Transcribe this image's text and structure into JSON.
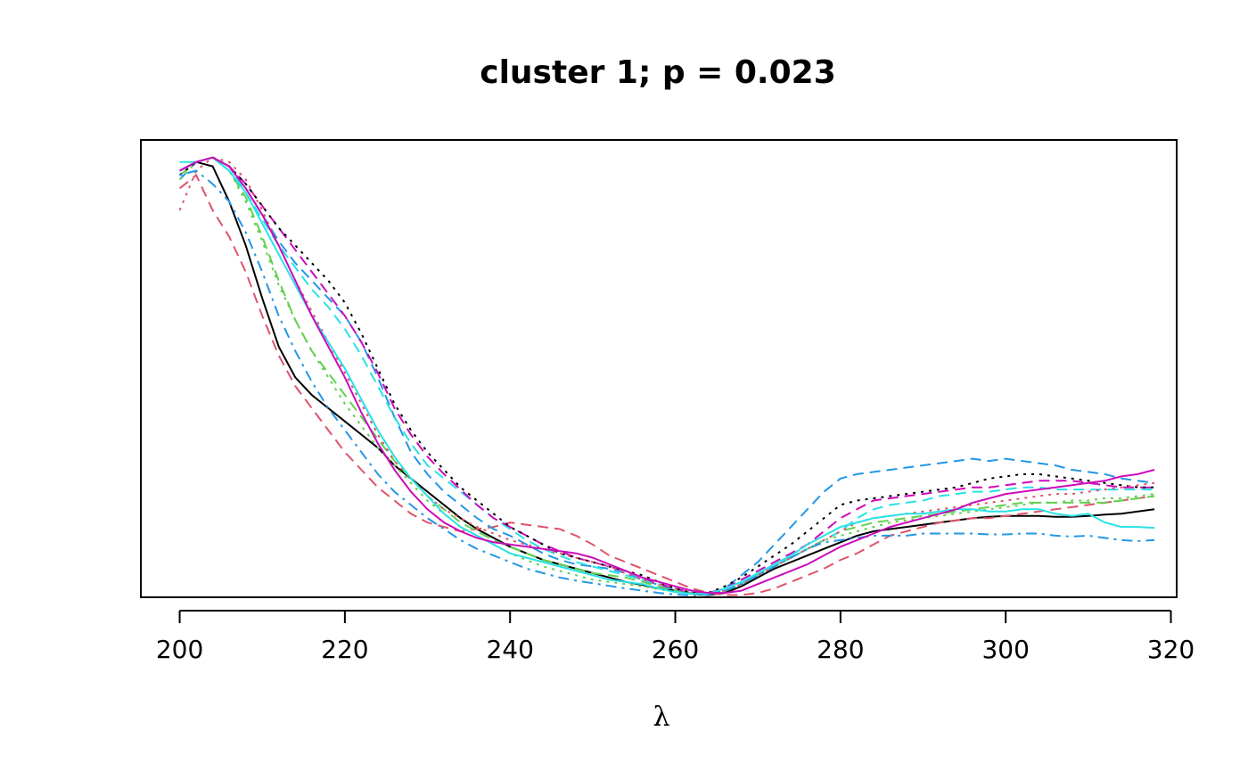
{
  "chart_data": {
    "type": "line",
    "title": "cluster 1; p = 0.023",
    "xlabel": "λ",
    "ylabel": "",
    "xlim": [
      195.3,
      320.7
    ],
    "ylim": [
      0,
      1.04
    ],
    "x_ticks": [
      200,
      220,
      240,
      260,
      280,
      300,
      320
    ],
    "y_axis_shown": false,
    "grid": false,
    "legend": "none",
    "x": [
      200,
      202,
      204,
      206,
      208,
      210,
      212,
      214,
      216,
      218,
      220,
      222,
      224,
      226,
      228,
      230,
      232,
      234,
      236,
      238,
      240,
      242,
      244,
      246,
      248,
      250,
      252,
      254,
      256,
      258,
      260,
      262,
      264,
      266,
      268,
      270,
      272,
      274,
      276,
      278,
      280,
      282,
      284,
      286,
      288,
      290,
      292,
      294,
      296,
      298,
      300,
      302,
      304,
      306,
      308,
      310,
      312,
      314,
      316,
      318
    ],
    "series": [
      {
        "color": "#000000",
        "dash": "solid",
        "values": [
          0.97,
          0.99,
          0.98,
          0.9,
          0.8,
          0.68,
          0.57,
          0.5,
          0.46,
          0.43,
          0.4,
          0.37,
          0.34,
          0.3,
          0.27,
          0.24,
          0.21,
          0.18,
          0.155,
          0.135,
          0.115,
          0.1,
          0.085,
          0.075,
          0.065,
          0.055,
          0.045,
          0.035,
          0.028,
          0.02,
          0.015,
          0.008,
          0.005,
          0.01,
          0.025,
          0.045,
          0.065,
          0.08,
          0.095,
          0.11,
          0.125,
          0.14,
          0.15,
          0.155,
          0.16,
          0.165,
          0.17,
          0.175,
          0.18,
          0.183,
          0.185,
          0.185,
          0.185,
          0.183,
          0.183,
          0.185,
          0.188,
          0.19,
          0.195,
          0.2
        ]
      },
      {
        "color": "#DF536B",
        "dash": "dashed",
        "values": [
          0.93,
          0.96,
          0.88,
          0.82,
          0.74,
          0.64,
          0.55,
          0.48,
          0.43,
          0.38,
          0.33,
          0.29,
          0.25,
          0.22,
          0.19,
          0.17,
          0.16,
          0.15,
          0.155,
          0.16,
          0.17,
          0.165,
          0.16,
          0.155,
          0.14,
          0.12,
          0.095,
          0.08,
          0.065,
          0.05,
          0.035,
          0.02,
          0.01,
          0.005,
          0.005,
          0.01,
          0.02,
          0.035,
          0.05,
          0.065,
          0.085,
          0.1,
          0.12,
          0.14,
          0.15,
          0.16,
          0.17,
          0.175,
          0.18,
          0.18,
          0.185,
          0.19,
          0.195,
          0.2,
          0.205,
          0.21,
          0.215,
          0.22,
          0.225,
          0.23
        ]
      },
      {
        "color": "#61D04F",
        "dash": "dashed",
        "values": [
          0.96,
          0.99,
          1.0,
          0.97,
          0.91,
          0.82,
          0.72,
          0.63,
          0.56,
          0.51,
          0.46,
          0.41,
          0.36,
          0.31,
          0.27,
          0.23,
          0.2,
          0.17,
          0.15,
          0.13,
          0.115,
          0.1,
          0.085,
          0.075,
          0.065,
          0.055,
          0.05,
          0.045,
          0.035,
          0.025,
          0.015,
          0.01,
          0.008,
          0.015,
          0.03,
          0.05,
          0.07,
          0.09,
          0.11,
          0.13,
          0.15,
          0.16,
          0.17,
          0.175,
          0.18,
          0.185,
          0.19,
          0.195,
          0.2,
          0.205,
          0.21,
          0.215,
          0.215,
          0.215,
          0.215,
          0.215,
          0.215,
          0.22,
          0.225,
          0.23
        ]
      },
      {
        "color": "#2297E6",
        "dash": "dashed",
        "values": [
          0.95,
          0.99,
          1.0,
          0.98,
          0.93,
          0.87,
          0.81,
          0.76,
          0.72,
          0.68,
          0.64,
          0.58,
          0.5,
          0.41,
          0.33,
          0.28,
          0.24,
          0.21,
          0.18,
          0.155,
          0.14,
          0.12,
          0.1,
          0.085,
          0.075,
          0.07,
          0.065,
          0.055,
          0.04,
          0.028,
          0.018,
          0.01,
          0.008,
          0.02,
          0.05,
          0.08,
          0.12,
          0.16,
          0.2,
          0.24,
          0.27,
          0.28,
          0.285,
          0.29,
          0.295,
          0.3,
          0.305,
          0.31,
          0.315,
          0.31,
          0.315,
          0.31,
          0.305,
          0.3,
          0.29,
          0.285,
          0.28,
          0.27,
          0.265,
          0.26
        ]
      },
      {
        "color": "#28E2E5",
        "dash": "dashed",
        "values": [
          0.97,
          0.99,
          1.0,
          0.98,
          0.92,
          0.86,
          0.8,
          0.75,
          0.7,
          0.66,
          0.61,
          0.55,
          0.48,
          0.41,
          0.35,
          0.3,
          0.27,
          0.24,
          0.21,
          0.18,
          0.155,
          0.13,
          0.11,
          0.095,
          0.08,
          0.07,
          0.06,
          0.05,
          0.04,
          0.03,
          0.02,
          0.01,
          0.008,
          0.015,
          0.03,
          0.05,
          0.07,
          0.09,
          0.11,
          0.13,
          0.15,
          0.18,
          0.2,
          0.21,
          0.215,
          0.22,
          0.23,
          0.235,
          0.24,
          0.24,
          0.245,
          0.25,
          0.25,
          0.245,
          0.245,
          0.245,
          0.245,
          0.245,
          0.245,
          0.245
        ]
      },
      {
        "color": "#CD0BBC",
        "dash": "dashed",
        "values": [
          0.97,
          0.99,
          1.0,
          0.98,
          0.94,
          0.89,
          0.84,
          0.79,
          0.74,
          0.69,
          0.64,
          0.58,
          0.51,
          0.43,
          0.37,
          0.32,
          0.28,
          0.245,
          0.21,
          0.18,
          0.16,
          0.14,
          0.12,
          0.105,
          0.09,
          0.08,
          0.07,
          0.06,
          0.045,
          0.03,
          0.02,
          0.01,
          0.01,
          0.02,
          0.04,
          0.06,
          0.08,
          0.1,
          0.12,
          0.15,
          0.18,
          0.2,
          0.22,
          0.225,
          0.23,
          0.235,
          0.24,
          0.245,
          0.25,
          0.25,
          0.255,
          0.26,
          0.265,
          0.265,
          0.265,
          0.26,
          0.255,
          0.25,
          0.25,
          0.25
        ]
      },
      {
        "color": "#000000",
        "dash": "dotted",
        "values": [
          0.96,
          0.99,
          1.0,
          0.98,
          0.94,
          0.89,
          0.84,
          0.8,
          0.76,
          0.72,
          0.67,
          0.6,
          0.52,
          0.44,
          0.38,
          0.33,
          0.29,
          0.25,
          0.22,
          0.19,
          0.16,
          0.14,
          0.12,
          0.1,
          0.09,
          0.08,
          0.07,
          0.06,
          0.05,
          0.035,
          0.02,
          0.01,
          0.01,
          0.025,
          0.045,
          0.07,
          0.095,
          0.12,
          0.15,
          0.18,
          0.21,
          0.22,
          0.225,
          0.23,
          0.235,
          0.24,
          0.245,
          0.25,
          0.26,
          0.27,
          0.275,
          0.28,
          0.28,
          0.275,
          0.27,
          0.265,
          0.26,
          0.255,
          0.25,
          0.25
        ]
      },
      {
        "color": "#DF536B",
        "dash": "dotted",
        "values": [
          0.88,
          0.97,
          1.0,
          0.99,
          0.95,
          0.88,
          0.8,
          0.72,
          0.65,
          0.58,
          0.51,
          0.44,
          0.37,
          0.31,
          0.27,
          0.23,
          0.2,
          0.18,
          0.16,
          0.145,
          0.13,
          0.12,
          0.11,
          0.1,
          0.09,
          0.08,
          0.07,
          0.055,
          0.04,
          0.03,
          0.02,
          0.01,
          0.008,
          0.015,
          0.03,
          0.05,
          0.07,
          0.09,
          0.11,
          0.13,
          0.15,
          0.17,
          0.18,
          0.185,
          0.19,
          0.195,
          0.2,
          0.205,
          0.21,
          0.215,
          0.22,
          0.225,
          0.23,
          0.235,
          0.235,
          0.24,
          0.245,
          0.25,
          0.255,
          0.26
        ]
      },
      {
        "color": "#61D04F",
        "dash": "dotted",
        "values": [
          0.95,
          0.99,
          1.0,
          0.97,
          0.9,
          0.81,
          0.71,
          0.63,
          0.56,
          0.5,
          0.44,
          0.39,
          0.34,
          0.3,
          0.26,
          0.22,
          0.19,
          0.16,
          0.14,
          0.12,
          0.1,
          0.085,
          0.07,
          0.06,
          0.05,
          0.04,
          0.035,
          0.03,
          0.025,
          0.018,
          0.012,
          0.008,
          0.008,
          0.015,
          0.03,
          0.05,
          0.07,
          0.09,
          0.11,
          0.13,
          0.14,
          0.15,
          0.16,
          0.17,
          0.175,
          0.18,
          0.185,
          0.19,
          0.195,
          0.2,
          0.205,
          0.21,
          0.215,
          0.215,
          0.22,
          0.22,
          0.225,
          0.225,
          0.23,
          0.235
        ]
      },
      {
        "color": "#2297E6",
        "dash": "dotdash",
        "values": [
          0.96,
          0.97,
          0.94,
          0.9,
          0.83,
          0.74,
          0.64,
          0.56,
          0.49,
          0.43,
          0.38,
          0.33,
          0.28,
          0.24,
          0.21,
          0.18,
          0.155,
          0.13,
          0.11,
          0.095,
          0.08,
          0.065,
          0.055,
          0.045,
          0.038,
          0.032,
          0.026,
          0.02,
          0.015,
          0.01,
          0.006,
          0.004,
          0.006,
          0.015,
          0.03,
          0.05,
          0.07,
          0.09,
          0.11,
          0.125,
          0.13,
          0.135,
          0.14,
          0.14,
          0.14,
          0.145,
          0.145,
          0.145,
          0.145,
          0.143,
          0.143,
          0.145,
          0.145,
          0.14,
          0.138,
          0.14,
          0.135,
          0.13,
          0.128,
          0.13
        ]
      },
      {
        "color": "#28E2E5",
        "dash": "solid",
        "values": [
          0.99,
          0.99,
          1.0,
          0.97,
          0.92,
          0.85,
          0.78,
          0.71,
          0.64,
          0.58,
          0.52,
          0.45,
          0.38,
          0.32,
          0.27,
          0.23,
          0.19,
          0.16,
          0.14,
          0.12,
          0.1,
          0.09,
          0.08,
          0.07,
          0.06,
          0.05,
          0.04,
          0.035,
          0.03,
          0.02,
          0.012,
          0.008,
          0.008,
          0.02,
          0.035,
          0.055,
          0.075,
          0.095,
          0.12,
          0.14,
          0.16,
          0.17,
          0.18,
          0.185,
          0.19,
          0.19,
          0.195,
          0.2,
          0.2,
          0.195,
          0.195,
          0.2,
          0.2,
          0.19,
          0.185,
          0.19,
          0.17,
          0.16,
          0.16,
          0.158
        ]
      },
      {
        "color": "#CD0BBC",
        "dash": "solid",
        "values": [
          0.97,
          0.99,
          1.0,
          0.98,
          0.93,
          0.87,
          0.8,
          0.72,
          0.64,
          0.57,
          0.5,
          0.42,
          0.35,
          0.29,
          0.24,
          0.2,
          0.17,
          0.15,
          0.135,
          0.125,
          0.12,
          0.115,
          0.11,
          0.105,
          0.1,
          0.09,
          0.075,
          0.06,
          0.045,
          0.035,
          0.025,
          0.015,
          0.01,
          0.01,
          0.015,
          0.03,
          0.045,
          0.06,
          0.075,
          0.095,
          0.115,
          0.13,
          0.145,
          0.16,
          0.17,
          0.18,
          0.19,
          0.2,
          0.215,
          0.225,
          0.235,
          0.24,
          0.245,
          0.25,
          0.255,
          0.26,
          0.265,
          0.275,
          0.28,
          0.29
        ]
      }
    ]
  }
}
